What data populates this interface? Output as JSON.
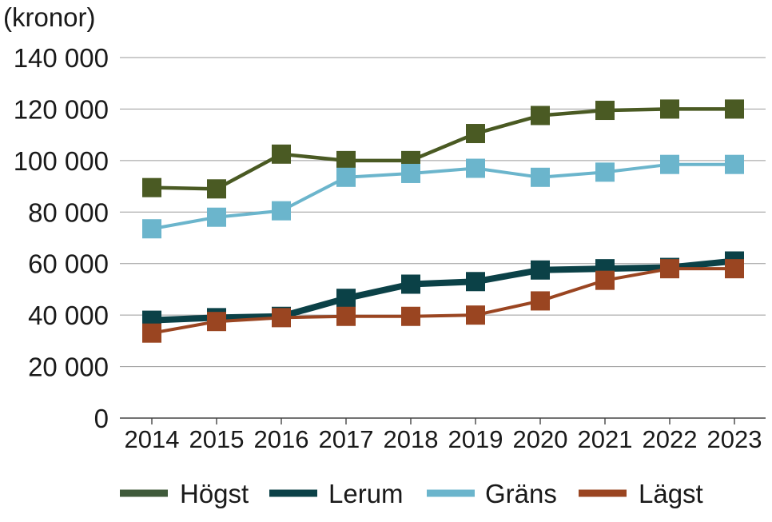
{
  "chart_data": {
    "type": "line",
    "title": "",
    "xlabel": "",
    "ylabel": "(kronor)",
    "ylim": [
      0,
      140000
    ],
    "yticks": [
      0,
      20000,
      40000,
      60000,
      80000,
      100000,
      120000,
      140000
    ],
    "ytick_labels": [
      "0",
      "20 000",
      "40 000",
      "60 000",
      "80 000",
      "100 000",
      "120 000",
      "140 000"
    ],
    "grid": "horizontal",
    "legend_position": "bottom",
    "categories": [
      "2014",
      "2015",
      "2016",
      "2017",
      "2018",
      "2019",
      "2020",
      "2021",
      "2022",
      "2023"
    ],
    "series": [
      {
        "name": "Högst",
        "color": "#4a5a23",
        "values": [
          89500,
          89000,
          102500,
          100000,
          100000,
          110500,
          117500,
          119500,
          120000,
          120000
        ]
      },
      {
        "name": "Lerum",
        "color": "#0b4147",
        "values": [
          38000,
          39000,
          39500,
          46500,
          52000,
          53000,
          57500,
          58000,
          58500,
          61000
        ]
      },
      {
        "name": "Gräns",
        "color": "#6bb5cc",
        "values": [
          73500,
          78000,
          80500,
          93500,
          95000,
          97000,
          93500,
          95500,
          98500,
          98500
        ]
      },
      {
        "name": "Lägst",
        "color": "#9a4521",
        "values": [
          33000,
          37500,
          39000,
          39500,
          39500,
          40000,
          45500,
          53500,
          58000,
          58000
        ]
      }
    ]
  }
}
